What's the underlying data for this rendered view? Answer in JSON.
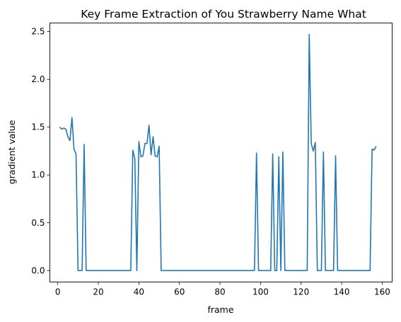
{
  "chart_data": {
    "type": "line",
    "title": "Key Frame Extraction of You Strawberry Name What",
    "xlabel": "frame",
    "ylabel": "gradient value",
    "xlim": [
      -3.9,
      164.9
    ],
    "ylim": [
      -0.12,
      2.59
    ],
    "xticks": [
      0,
      20,
      40,
      60,
      80,
      100,
      120,
      140,
      160
    ],
    "yticks": [
      0.0,
      0.5,
      1.0,
      1.5,
      2.0,
      2.5
    ],
    "ytick_labels": [
      "0.0",
      "0.5",
      "1.0",
      "1.5",
      "2.0",
      "2.5"
    ],
    "grid": false,
    "legend": "none",
    "series": [
      {
        "color": "#1f77b4",
        "x": [
          1,
          2,
          3,
          4,
          5,
          6,
          7,
          8,
          9,
          10,
          11,
          12,
          13,
          14,
          15,
          16,
          17,
          18,
          19,
          20,
          21,
          22,
          23,
          24,
          25,
          26,
          27,
          28,
          29,
          30,
          31,
          32,
          33,
          34,
          35,
          36,
          37,
          38,
          39,
          40,
          41,
          42,
          43,
          44,
          45,
          46,
          47,
          48,
          49,
          50,
          51,
          52,
          53,
          54,
          55,
          56,
          57,
          58,
          59,
          60,
          61,
          62,
          63,
          64,
          65,
          66,
          67,
          68,
          69,
          70,
          71,
          72,
          73,
          74,
          75,
          76,
          77,
          78,
          79,
          80,
          81,
          82,
          83,
          84,
          85,
          86,
          87,
          88,
          89,
          90,
          91,
          92,
          93,
          94,
          95,
          96,
          97,
          98,
          99,
          100,
          101,
          102,
          103,
          104,
          105,
          106,
          107,
          108,
          109,
          110,
          111,
          112,
          113,
          114,
          115,
          116,
          117,
          118,
          119,
          120,
          121,
          122,
          123,
          124,
          125,
          126,
          127,
          128,
          129,
          130,
          131,
          132,
          133,
          134,
          135,
          136,
          137,
          138,
          139,
          140,
          141,
          142,
          143,
          144,
          145,
          146,
          147,
          148,
          149,
          150,
          151,
          152,
          153,
          154,
          155,
          156,
          157
        ],
        "y": [
          1.5,
          1.48,
          1.49,
          1.48,
          1.4,
          1.36,
          1.6,
          1.27,
          1.22,
          0,
          0,
          0,
          1.32,
          0,
          0,
          0,
          0,
          0,
          0,
          0,
          0,
          0,
          0,
          0,
          0,
          0,
          0,
          0,
          0,
          0,
          0,
          0,
          0,
          0,
          0,
          0,
          1.26,
          1.17,
          0,
          1.35,
          1.19,
          1.2,
          1.33,
          1.33,
          1.52,
          1.21,
          1.4,
          1.2,
          1.19,
          1.3,
          0,
          0,
          0,
          0,
          0,
          0,
          0,
          0,
          0,
          0,
          0,
          0,
          0,
          0,
          0,
          0,
          0,
          0,
          0,
          0,
          0,
          0,
          0,
          0,
          0,
          0,
          0,
          0,
          0,
          0,
          0,
          0,
          0,
          0,
          0,
          0,
          0,
          0,
          0,
          0,
          0,
          0,
          0,
          0,
          0,
          0,
          0,
          1.23,
          0,
          0,
          0,
          0,
          0,
          0,
          0,
          1.22,
          0,
          0,
          1.19,
          0,
          1.24,
          0,
          0,
          0,
          0,
          0,
          0,
          0,
          0,
          0,
          0,
          0,
          0,
          2.47,
          1.33,
          1.25,
          1.34,
          0,
          0,
          0,
          1.24,
          0,
          0,
          0,
          0,
          0,
          1.2,
          0,
          0,
          0,
          0,
          0,
          0,
          0,
          0,
          0,
          0,
          0,
          0,
          0,
          0,
          0,
          0,
          0,
          1.27,
          1.26,
          1.3
        ]
      }
    ]
  }
}
